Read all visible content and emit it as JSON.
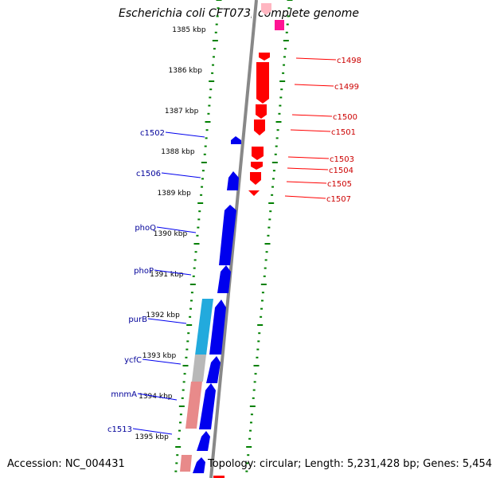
{
  "title": "Escherichia coli CFT073, complete genome",
  "footer": {
    "accession": "Accession: NC_004431",
    "stats": "Topology: circular; Length: 5,231,428 bp; Genes: 5,454"
  },
  "colors": {
    "forward_gene": "#ff0000",
    "reverse_gene": "#0000ee",
    "tick": "#008000",
    "backbone": "#888888",
    "label_forward": "#cc0000",
    "label_reverse": "#000099"
  },
  "scale_labels": [
    "1385 kbp",
    "1386 kbp",
    "1387 kbp",
    "1388 kbp",
    "1389 kbp",
    "1390 kbp",
    "1391 kbp",
    "1392 kbp",
    "1393 kbp",
    "1394 kbp",
    "1395 kbp"
  ],
  "forward_gene_labels": [
    "c1498",
    "c1499",
    "c1500",
    "c1501",
    "c1503",
    "c1504",
    "c1505",
    "c1507"
  ],
  "reverse_gene_labels": [
    "c1502",
    "c1506",
    "phoQ",
    "phoP",
    "purB",
    "ycfC",
    "mnmA",
    "c1513"
  ]
}
